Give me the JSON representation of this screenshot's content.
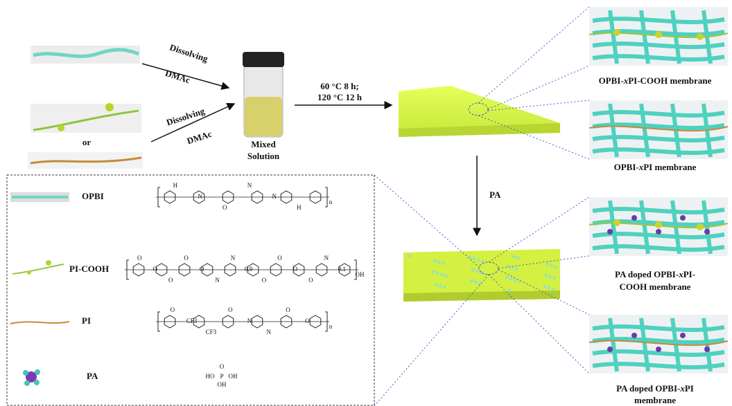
{
  "steps": {
    "dissolving_1": "Dissolving",
    "solvent_1": "DMAc",
    "dissolving_2": "Dissolving",
    "solvent_2": "DMAc",
    "or": "or",
    "mixed": [
      "Mixed",
      "Solution"
    ],
    "curing": [
      "60 °C 8 h;",
      "120 °C 12 h"
    ],
    "doping": "PA"
  },
  "membranes": [
    {
      "lines": [
        [
          "OPBI-",
          "x",
          "PI-COOH membrane"
        ]
      ]
    },
    {
      "lines": [
        [
          "OPBI-",
          "x",
          "PI membrane"
        ]
      ]
    },
    {
      "lines": [
        [
          "PA doped OPBI-",
          "x",
          "PI-"
        ],
        [
          "",
          "",
          "COOH membrane"
        ]
      ]
    },
    {
      "lines": [
        [
          "PA doped OPBI-",
          "x",
          "PI"
        ],
        [
          "",
          "",
          "membrane"
        ]
      ]
    }
  ],
  "legend": [
    {
      "name": "OPBI",
      "atoms": [
        "H",
        "N",
        "O",
        "N",
        "N",
        "H",
        "n"
      ]
    },
    {
      "name": "PI-COOH",
      "atoms": [
        "O",
        "O",
        "O",
        "O",
        "O",
        "N",
        "N",
        "0.9",
        "O",
        "O",
        "O",
        "O",
        "N",
        "0.1",
        "OH"
      ]
    },
    {
      "name": "PI",
      "atoms": [
        "O",
        "CF3",
        "CF3",
        "O",
        "N",
        "N",
        "O",
        "O",
        "n"
      ]
    },
    {
      "name": "PA",
      "atoms": [
        "O",
        "HO",
        "P",
        "OH",
        "OH"
      ]
    }
  ]
}
